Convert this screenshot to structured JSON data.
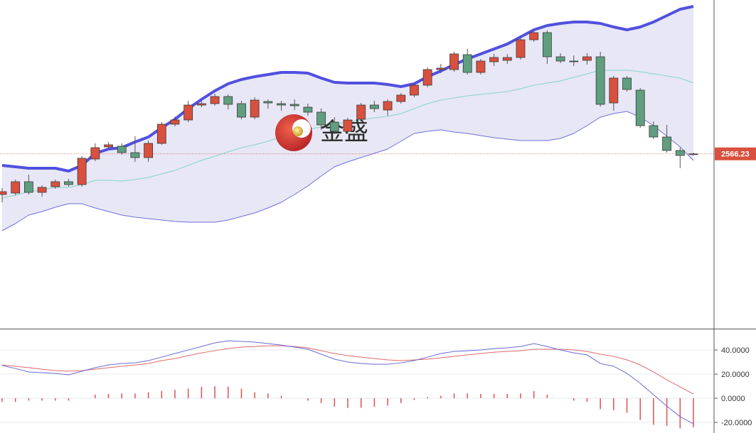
{
  "chart_data": [
    {
      "type": "candlestick",
      "watermark": "金盛",
      "ylim": [
        2320,
        2783
      ],
      "up_color": "#d9503f",
      "down_color": "#5f9e7f",
      "last_price_color": "#d9503f",
      "open": [
        2509,
        2511,
        2527,
        2512,
        2520,
        2527,
        2523,
        2559,
        2576,
        2577,
        2568,
        2561,
        2581,
        2608,
        2614,
        2635,
        2637,
        2647,
        2637,
        2618,
        2640,
        2637,
        2636,
        2632,
        2625,
        2611,
        2598,
        2615,
        2635,
        2628,
        2640,
        2649,
        2663,
        2685,
        2685,
        2706,
        2681,
        2696,
        2698,
        2702,
        2727,
        2737,
        2703,
        2697,
        2698,
        2703,
        2638,
        2673,
        2656,
        2606,
        2590,
        2571,
        2566
      ],
      "high": [
        2518,
        2530,
        2537,
        2522,
        2530,
        2531,
        2563,
        2581,
        2583,
        2581,
        2591,
        2585,
        2611,
        2619,
        2641,
        2641,
        2651,
        2650,
        2641,
        2646,
        2643,
        2641,
        2643,
        2637,
        2630,
        2618,
        2617,
        2638,
        2641,
        2643,
        2652,
        2666,
        2688,
        2693,
        2710,
        2714,
        2700,
        2707,
        2707,
        2730,
        2740,
        2740,
        2708,
        2705,
        2708,
        2710,
        2676,
        2676,
        2659,
        2612,
        2607,
        2575,
        2568
      ],
      "low": [
        2498,
        2508,
        2509,
        2506,
        2517,
        2520,
        2520,
        2556,
        2574,
        2565,
        2555,
        2555,
        2579,
        2605,
        2611,
        2632,
        2634,
        2629,
        2615,
        2615,
        2630,
        2627,
        2628,
        2620,
        2600,
        2594,
        2595,
        2612,
        2625,
        2620,
        2637,
        2646,
        2660,
        2680,
        2682,
        2678,
        2678,
        2690,
        2693,
        2699,
        2724,
        2693,
        2694,
        2690,
        2692,
        2633,
        2627,
        2654,
        2603,
        2587,
        2568,
        2546,
        2564
      ],
      "close": [
        2513,
        2527,
        2512,
        2519,
        2527,
        2523,
        2560,
        2575,
        2579,
        2568,
        2561,
        2581,
        2608,
        2614,
        2635,
        2637,
        2647,
        2636,
        2618,
        2642,
        2638,
        2635,
        2634,
        2625,
        2607,
        2598,
        2614,
        2635,
        2630,
        2640,
        2649,
        2663,
        2685,
        2687,
        2707,
        2681,
        2697,
        2702,
        2702,
        2727,
        2737,
        2703,
        2697,
        2696,
        2703,
        2636,
        2673,
        2657,
        2606,
        2590,
        2571,
        2564,
        2566.23
      ],
      "bands": {
        "upper": {
          "color": "#5050e0",
          "values": [
            2550,
            2548,
            2546,
            2546,
            2546,
            2542,
            2550,
            2567,
            2573,
            2575,
            2583,
            2590,
            2603,
            2615,
            2630,
            2643,
            2655,
            2665,
            2671,
            2675,
            2678,
            2681,
            2681,
            2680,
            2673,
            2667,
            2666,
            2666,
            2666,
            2664,
            2661,
            2665,
            2675,
            2683,
            2692,
            2700,
            2707,
            2714,
            2721,
            2731,
            2741,
            2747,
            2750,
            2752,
            2752,
            2750,
            2745,
            2741,
            2745,
            2752,
            2761,
            2770,
            2774
          ]
        },
        "middle": {
          "color": "#86d6c4",
          "values": [
            2504,
            2508,
            2513,
            2516,
            2519,
            2519,
            2523,
            2529,
            2529,
            2528,
            2530,
            2533,
            2538,
            2543,
            2550,
            2557,
            2563,
            2569,
            2575,
            2579,
            2584,
            2590,
            2595,
            2601,
            2604,
            2608,
            2611,
            2614,
            2617,
            2619,
            2623,
            2630,
            2637,
            2642,
            2645,
            2648,
            2650,
            2652,
            2654,
            2658,
            2663,
            2666,
            2669,
            2674,
            2679,
            2684,
            2684,
            2684,
            2682,
            2679,
            2676,
            2673,
            2666
          ]
        },
        "lower": {
          "color": "#6f6fdc",
          "values": [
            2458,
            2468,
            2480,
            2485,
            2491,
            2496,
            2496,
            2490,
            2485,
            2480,
            2477,
            2475,
            2473,
            2471,
            2470,
            2470,
            2470,
            2473,
            2478,
            2483,
            2490,
            2498,
            2509,
            2521,
            2535,
            2548,
            2555,
            2561,
            2567,
            2573,
            2584,
            2595,
            2598,
            2600,
            2597,
            2595,
            2592,
            2589,
            2587,
            2585,
            2585,
            2585,
            2588,
            2595,
            2606,
            2618,
            2623,
            2626,
            2618,
            2606,
            2591,
            2576,
            2557
          ]
        },
        "fill": "#e7e7f5"
      }
    },
    {
      "type": "macd",
      "ylim": [
        -28.8,
        56.5
      ],
      "yticks": [
        {
          "value": 40,
          "label": "40.0000"
        },
        {
          "value": 20,
          "label": "20.0000"
        },
        {
          "value": 0,
          "label": "0.0000"
        },
        {
          "value": -20,
          "label": "-20.0000"
        }
      ],
      "dif": {
        "color": "#6a6ad8",
        "values": [
          27.1,
          24.7,
          21.8,
          21.2,
          20.6,
          19.4,
          22.4,
          25.3,
          27.6,
          28.8,
          29.4,
          31.2,
          34.1,
          37.1,
          40.0,
          42.9,
          45.9,
          47.6,
          47.1,
          46.5,
          45.3,
          44.1,
          42.4,
          40.6,
          36.5,
          32.4,
          30.0,
          28.8,
          28.2,
          28.2,
          29.4,
          31.2,
          34.1,
          37.1,
          38.8,
          39.4,
          40.0,
          41.2,
          41.8,
          42.9,
          45.3,
          42.9,
          40.0,
          37.6,
          35.9,
          28.8,
          26.5,
          20.6,
          12.4,
          2.9,
          -6.5,
          -15.3,
          -21.2
        ]
      },
      "dea": {
        "color": "#e06a6a",
        "values": [
          27.6,
          26.5,
          25.3,
          24.1,
          22.9,
          22.4,
          22.9,
          24.1,
          25.3,
          26.5,
          27.6,
          28.8,
          31.2,
          32.9,
          35.3,
          37.6,
          39.4,
          41.2,
          42.4,
          42.9,
          43.5,
          43.5,
          42.9,
          41.8,
          39.4,
          37.1,
          35.3,
          34.1,
          32.9,
          31.8,
          31.2,
          31.8,
          32.4,
          33.5,
          34.7,
          35.9,
          37.1,
          38.2,
          38.8,
          39.4,
          40.6,
          40.6,
          40.6,
          40.0,
          38.8,
          36.5,
          34.7,
          31.8,
          27.6,
          21.8,
          15.3,
          9.4,
          3.5
        ]
      },
      "histogram": {
        "color": "#e05050",
        "values": [
          -3,
          -3,
          -2,
          -2,
          -2,
          -2,
          0,
          3,
          3.5,
          4,
          4,
          5,
          6,
          7,
          8,
          9.5,
          10,
          9.5,
          8,
          5,
          4,
          2,
          0,
          -2,
          -4,
          -7,
          -8,
          -8,
          -7,
          -6,
          -4,
          -1.5,
          1,
          2,
          4,
          4,
          3.5,
          3.5,
          3.5,
          4,
          6,
          3,
          0,
          -2,
          -3,
          -9,
          -10,
          -12,
          -18,
          -22,
          -23,
          -25,
          -24
        ]
      }
    }
  ]
}
